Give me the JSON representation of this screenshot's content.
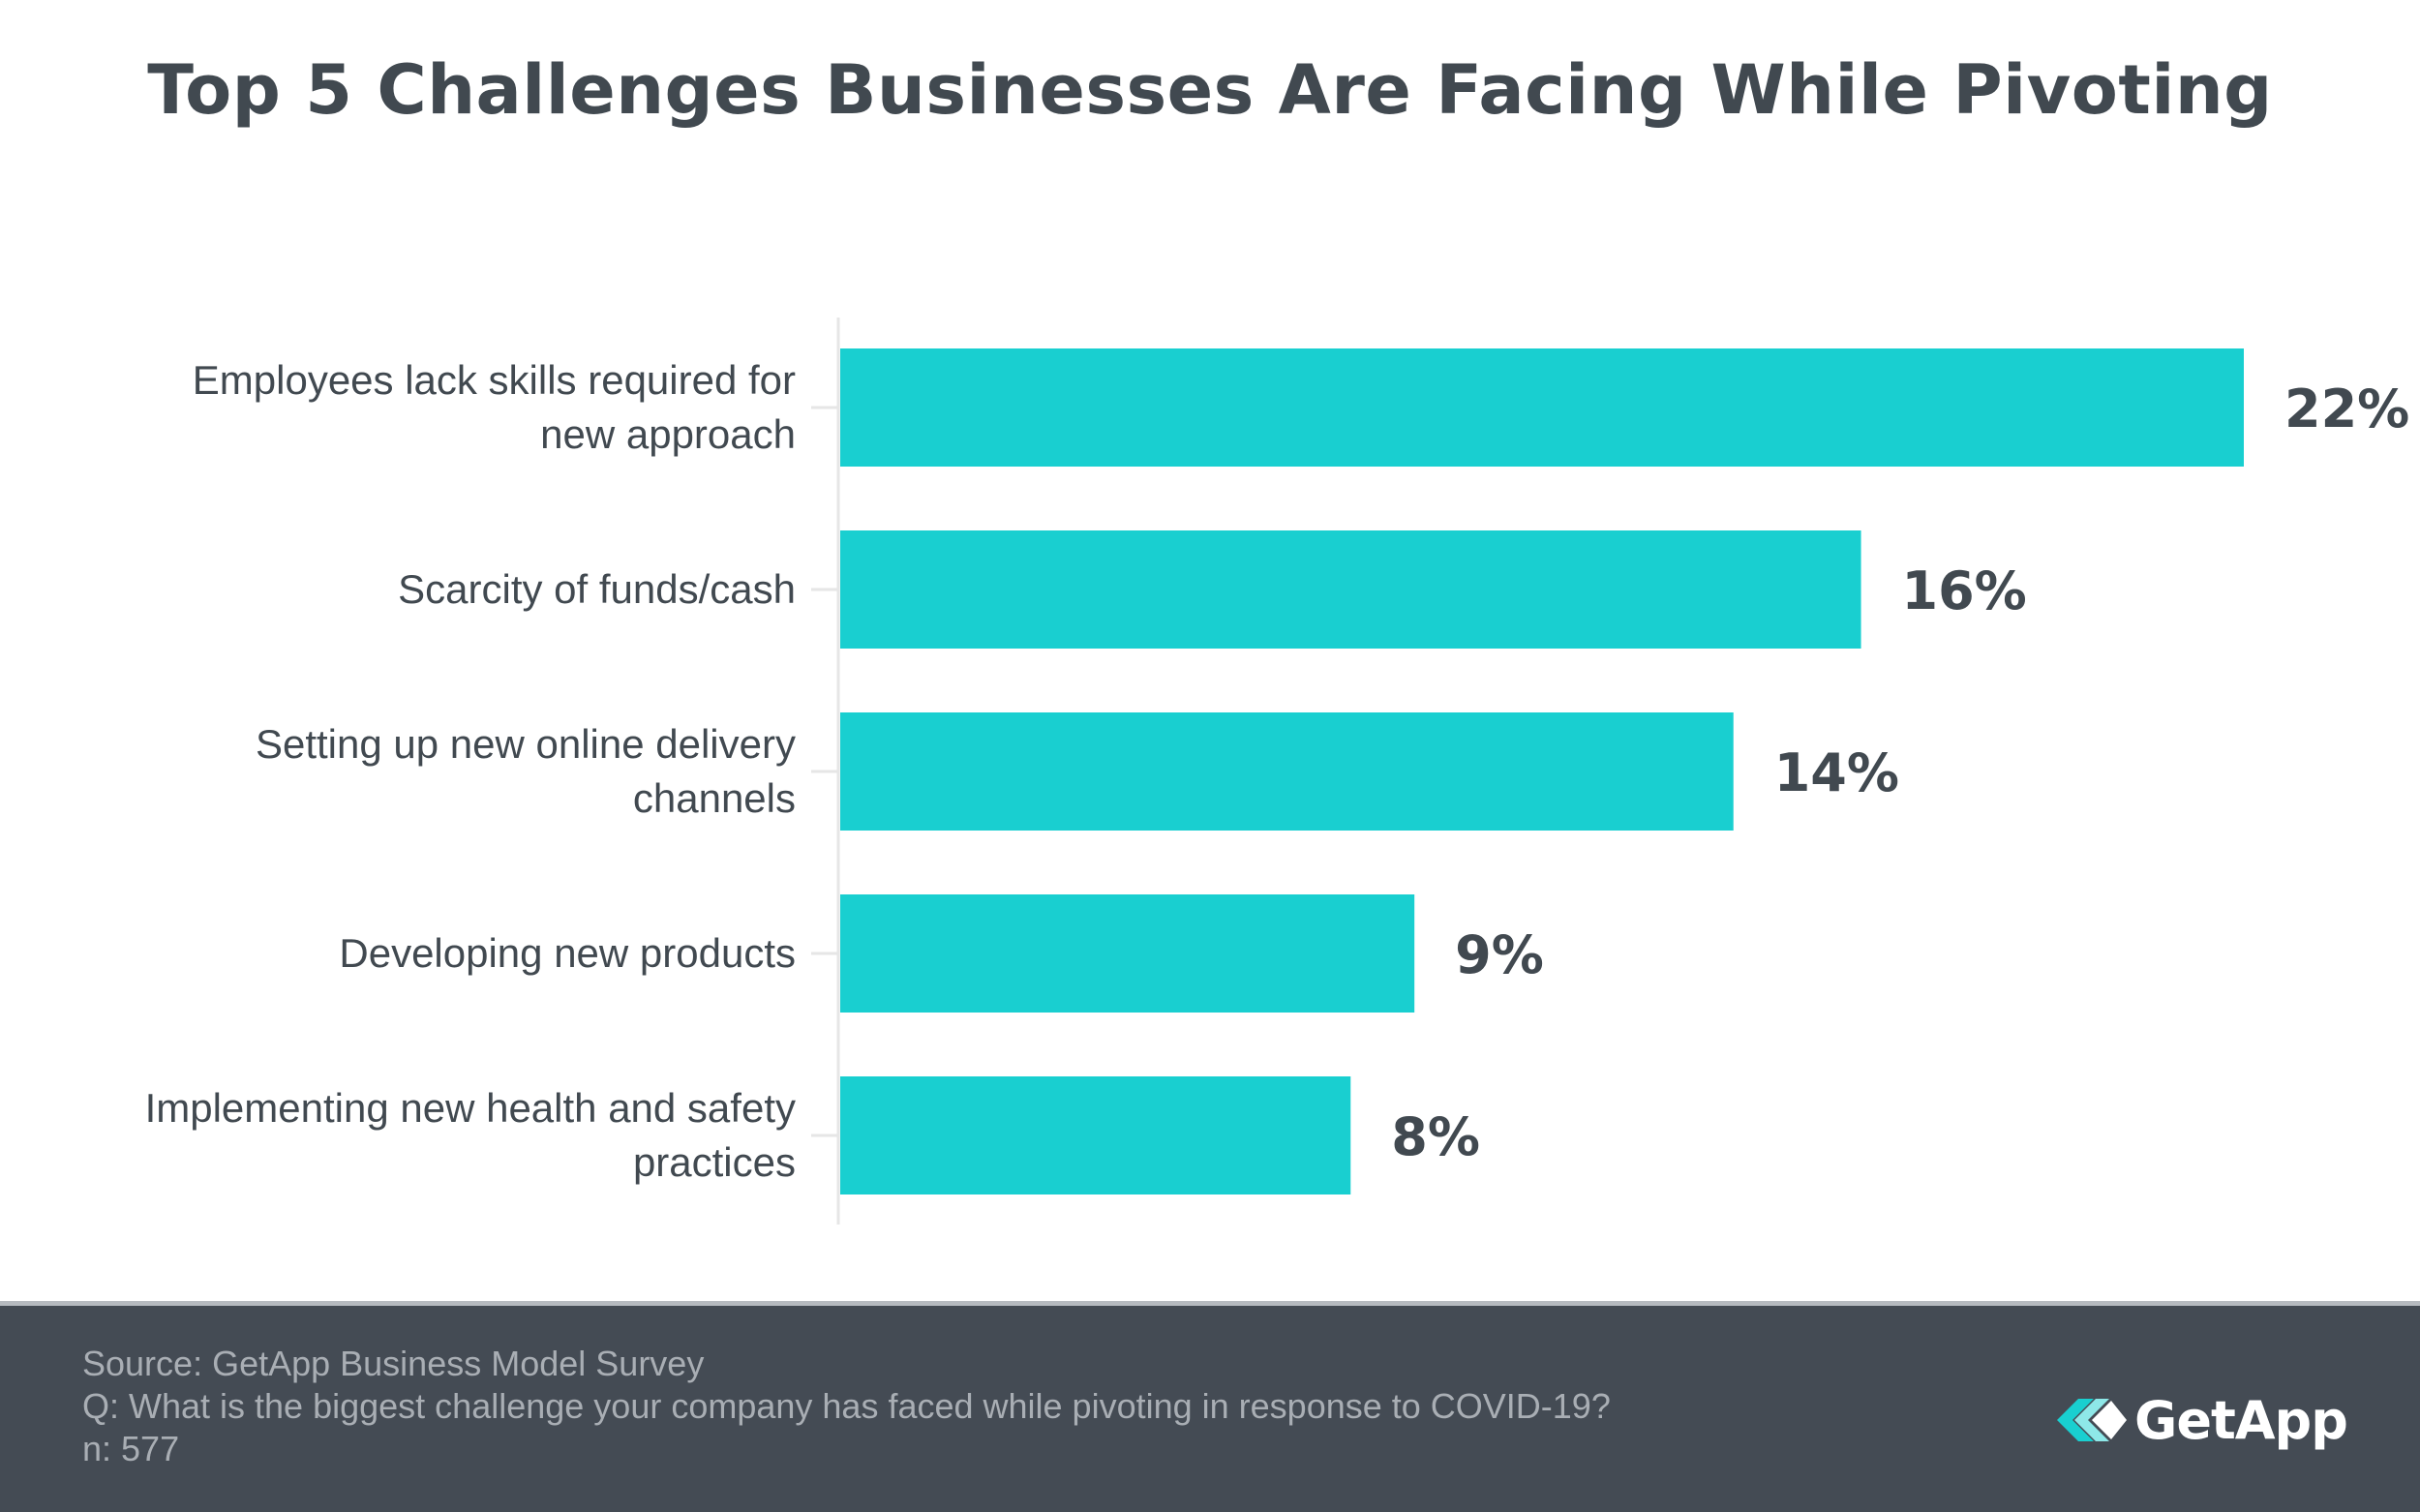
{
  "title": "Top 5 Challenges Businesses Are Facing While Pivoting",
  "chart_data": {
    "type": "bar",
    "orientation": "horizontal",
    "title": "Top 5 Challenges Businesses Are Facing While Pivoting",
    "categories": [
      [
        "Employees lack skills required for",
        "new approach"
      ],
      [
        "Scarcity of funds/cash"
      ],
      [
        "Setting up new online delivery",
        "channels"
      ],
      [
        "Developing new products"
      ],
      [
        "Implementing new health and safety",
        "practices"
      ]
    ],
    "values": [
      22,
      16,
      14,
      9,
      8
    ],
    "value_labels": [
      "22%",
      "16%",
      "14%",
      "9%",
      "8%"
    ],
    "unit": "%",
    "xlim": [
      0,
      22
    ],
    "bar_color": "#19cfd0",
    "label_color": "#414950",
    "grid": false,
    "legend": "none"
  },
  "footer": {
    "source": "Source: GetApp Business Model Survey",
    "question": "Q: What is the biggest challenge your company has faced while pivoting in response to COVID-19?",
    "sample": "n: 577",
    "background": "#444b54"
  },
  "logo": {
    "text": "GetApp",
    "icon": "getapp-chevrons-icon",
    "icon_colors": [
      "#19cfd0",
      "#8ee8e8",
      "#ffffff"
    ]
  }
}
